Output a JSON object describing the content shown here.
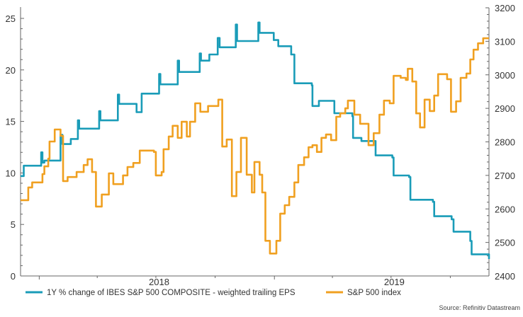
{
  "chart_data": {
    "type": "line",
    "title": "",
    "xlabel": "",
    "x_tick_labels": [
      "2018",
      "2019"
    ],
    "x_range": [
      "2017-12-03",
      "2019-11-30"
    ],
    "y_left": {
      "label": "",
      "range": [
        0,
        25
      ],
      "ticks": [
        0,
        5,
        10,
        15,
        20,
        25
      ]
    },
    "y_right": {
      "label": "",
      "range": [
        2400,
        3200
      ],
      "ticks": [
        2400,
        2500,
        2600,
        2700,
        2800,
        2900,
        3000,
        3100,
        3200
      ]
    },
    "grid": false,
    "legend_placement": "bottom",
    "source": "Source: Refinitiv Datastream",
    "series": [
      {
        "name": "1Y % change of IBES S&P 500 COMPOSITE - weighted trailing EPS",
        "axis": "left",
        "color": "#1a9cb8",
        "step": true,
        "points": [
          [
            "2017-12-03",
            9.7
          ],
          [
            "2017-12-08",
            10.7
          ],
          [
            "2018-01-04",
            12.0
          ],
          [
            "2018-01-06",
            11.0
          ],
          [
            "2018-01-09",
            11.2
          ],
          [
            "2018-02-03",
            13.7
          ],
          [
            "2018-02-06",
            12.8
          ],
          [
            "2018-02-19",
            13.3
          ],
          [
            "2018-03-02",
            15.1
          ],
          [
            "2018-03-04",
            14.3
          ],
          [
            "2018-04-04",
            16.0
          ],
          [
            "2018-04-06",
            15.1
          ],
          [
            "2018-05-03",
            17.6
          ],
          [
            "2018-05-05",
            16.7
          ],
          [
            "2018-06-01",
            15.9
          ],
          [
            "2018-06-09",
            17.7
          ],
          [
            "2018-07-06",
            19.6
          ],
          [
            "2018-07-08",
            18.6
          ],
          [
            "2018-08-04",
            20.9
          ],
          [
            "2018-08-06",
            19.8
          ],
          [
            "2018-09-07",
            21.6
          ],
          [
            "2018-09-09",
            20.9
          ],
          [
            "2018-09-22",
            21.5
          ],
          [
            "2018-10-05",
            23.1
          ],
          [
            "2018-10-08",
            22.2
          ],
          [
            "2018-11-02",
            24.4
          ],
          [
            "2018-11-04",
            22.8
          ],
          [
            "2018-12-07",
            24.6
          ],
          [
            "2018-12-09",
            23.6
          ],
          [
            "2018-12-31",
            22.9
          ],
          [
            "2019-01-07",
            22.3
          ],
          [
            "2019-01-27",
            21.5
          ],
          [
            "2019-02-01",
            18.7
          ],
          [
            "2019-02-28",
            18.5
          ],
          [
            "2019-03-01",
            16.5
          ],
          [
            "2019-03-11",
            17.0
          ],
          [
            "2019-04-04",
            15.8
          ],
          [
            "2019-05-02",
            15.5
          ],
          [
            "2019-05-03",
            13.4
          ],
          [
            "2019-05-16",
            13.1
          ],
          [
            "2019-06-07",
            11.7
          ],
          [
            "2019-07-03",
            11.5
          ],
          [
            "2019-07-05",
            9.75
          ],
          [
            "2019-07-29",
            9.6
          ],
          [
            "2019-07-31",
            7.4
          ],
          [
            "2019-09-04",
            7.2
          ],
          [
            "2019-09-06",
            5.8
          ],
          [
            "2019-10-03",
            5.5
          ],
          [
            "2019-10-06",
            4.3
          ],
          [
            "2019-11-01",
            3.4
          ],
          [
            "2019-11-03",
            2.1
          ],
          [
            "2019-11-30",
            1.65
          ]
        ]
      },
      {
        "name": "S&P 500 index",
        "axis": "right",
        "color": "#f0a020",
        "step": true,
        "points": [
          [
            "2017-12-03",
            2626
          ],
          [
            "2017-12-15",
            2664
          ],
          [
            "2017-12-21",
            2679
          ],
          [
            "2018-01-06",
            2704
          ],
          [
            "2018-01-09",
            2727
          ],
          [
            "2018-01-15",
            2750
          ],
          [
            "2018-01-17",
            2801
          ],
          [
            "2018-01-25",
            2837
          ],
          [
            "2018-02-03",
            2818
          ],
          [
            "2018-02-07",
            2683
          ],
          [
            "2018-02-14",
            2695
          ],
          [
            "2018-02-28",
            2710
          ],
          [
            "2018-03-11",
            2731
          ],
          [
            "2018-03-17",
            2748
          ],
          [
            "2018-03-24",
            2710
          ],
          [
            "2018-03-30",
            2607
          ],
          [
            "2018-04-08",
            2643
          ],
          [
            "2018-04-19",
            2706
          ],
          [
            "2018-04-26",
            2674
          ],
          [
            "2018-05-11",
            2700
          ],
          [
            "2018-05-18",
            2725
          ],
          [
            "2018-05-27",
            2737
          ],
          [
            "2018-06-06",
            2774
          ],
          [
            "2018-06-28",
            2770
          ],
          [
            "2018-07-01",
            2700
          ],
          [
            "2018-07-10",
            2710
          ],
          [
            "2018-07-13",
            2778
          ],
          [
            "2018-07-21",
            2816
          ],
          [
            "2018-07-27",
            2848
          ],
          [
            "2018-08-04",
            2812
          ],
          [
            "2018-08-10",
            2860
          ],
          [
            "2018-08-18",
            2816
          ],
          [
            "2018-08-23",
            2860
          ],
          [
            "2018-08-31",
            2915
          ],
          [
            "2018-09-08",
            2890
          ],
          [
            "2018-09-20",
            2907
          ],
          [
            "2018-10-06",
            2926
          ],
          [
            "2018-10-12",
            2786
          ],
          [
            "2018-10-19",
            2807
          ],
          [
            "2018-10-27",
            2638
          ],
          [
            "2018-11-03",
            2710
          ],
          [
            "2018-11-10",
            2812
          ],
          [
            "2018-11-19",
            2702
          ],
          [
            "2018-11-27",
            2649
          ],
          [
            "2018-12-01",
            2740
          ],
          [
            "2018-12-09",
            2702
          ],
          [
            "2018-12-13",
            2649
          ],
          [
            "2018-12-18",
            2505
          ],
          [
            "2018-12-25",
            2467
          ],
          [
            "2019-01-04",
            2505
          ],
          [
            "2019-01-10",
            2586
          ],
          [
            "2019-01-17",
            2611
          ],
          [
            "2019-01-24",
            2636
          ],
          [
            "2019-02-01",
            2679
          ],
          [
            "2019-02-07",
            2731
          ],
          [
            "2019-02-16",
            2754
          ],
          [
            "2019-02-23",
            2784
          ],
          [
            "2019-03-01",
            2790
          ],
          [
            "2019-03-08",
            2770
          ],
          [
            "2019-03-15",
            2812
          ],
          [
            "2019-03-22",
            2822
          ],
          [
            "2019-03-30",
            2805
          ],
          [
            "2019-04-07",
            2875
          ],
          [
            "2019-04-13",
            2885
          ],
          [
            "2019-04-21",
            2900
          ],
          [
            "2019-04-25",
            2923
          ],
          [
            "2019-05-05",
            2881
          ],
          [
            "2019-05-14",
            2854
          ],
          [
            "2019-05-27",
            2790
          ],
          [
            "2019-06-04",
            2826
          ],
          [
            "2019-06-13",
            2881
          ],
          [
            "2019-06-20",
            2923
          ],
          [
            "2019-06-29",
            2915
          ],
          [
            "2019-07-05",
            2997
          ],
          [
            "2019-07-16",
            2991
          ],
          [
            "2019-07-24",
            2985
          ],
          [
            "2019-07-27",
            3018
          ],
          [
            "2019-08-03",
            2980
          ],
          [
            "2019-08-09",
            2885
          ],
          [
            "2019-08-15",
            2843
          ],
          [
            "2019-08-22",
            2926
          ],
          [
            "2019-08-30",
            2892
          ],
          [
            "2019-09-06",
            2938
          ],
          [
            "2019-09-12",
            3002
          ],
          [
            "2019-09-26",
            2987
          ],
          [
            "2019-10-02",
            2890
          ],
          [
            "2019-10-10",
            2921
          ],
          [
            "2019-10-17",
            2991
          ],
          [
            "2019-10-26",
            3004
          ],
          [
            "2019-11-01",
            3046
          ],
          [
            "2019-11-06",
            3075
          ],
          [
            "2019-11-13",
            3094
          ],
          [
            "2019-11-21",
            3109
          ],
          [
            "2019-11-30",
            3109
          ]
        ]
      }
    ]
  }
}
